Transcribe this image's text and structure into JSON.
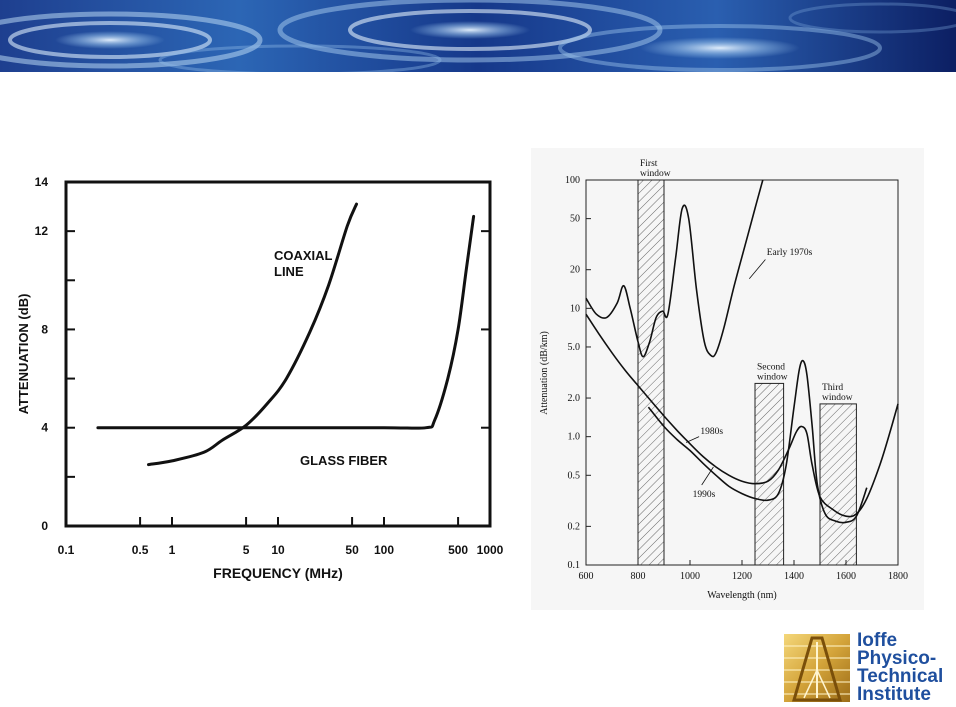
{
  "banner": {
    "colors": [
      "#0b1e5c",
      "#1d4fa3",
      "#7fb2e0",
      "#e8f2fb"
    ]
  },
  "chart_data": [
    {
      "type": "line",
      "title": "",
      "xlabel": "FREQUENCY (MHz)",
      "ylabel": "ATTENUATION (dB)",
      "xscale": "log",
      "xlim": [
        0.1,
        1000
      ],
      "ylim": [
        0,
        14
      ],
      "x_ticks": [
        "0.1",
        "0.5",
        "1",
        "5",
        "10",
        "50",
        "100",
        "500",
        "1000"
      ],
      "y_ticks": [
        "0",
        "4",
        "8",
        "12",
        "14"
      ],
      "series": [
        {
          "name": "COAXIAL LINE",
          "label_lines": [
            "COAXIAL",
            "LINE"
          ],
          "points": [
            [
              0.6,
              2.5
            ],
            [
              1,
              2.65
            ],
            [
              2,
              3.0
            ],
            [
              3,
              3.5
            ],
            [
              5,
              4.1
            ],
            [
              8,
              5.0
            ],
            [
              12,
              6.0
            ],
            [
              20,
              7.9
            ],
            [
              30,
              9.8
            ],
            [
              45,
              12.2
            ],
            [
              55,
              13.1
            ]
          ]
        },
        {
          "name": "GLASS FIBER",
          "label_lines": [
            "GLASS FIBER"
          ],
          "points": [
            [
              0.2,
              4.0
            ],
            [
              1,
              4.0
            ],
            [
              10,
              4.0
            ],
            [
              100,
              4.0
            ],
            [
              250,
              4.0
            ],
            [
              300,
              4.3
            ],
            [
              400,
              6.0
            ],
            [
              500,
              8.0
            ],
            [
              600,
              10.5
            ],
            [
              700,
              12.6
            ]
          ]
        }
      ]
    },
    {
      "type": "line",
      "title": "",
      "xlabel": "Wavelength (nm)",
      "ylabel": "Attenuation (dB/km)",
      "yscale": "log",
      "xlim": [
        600,
        1800
      ],
      "ylim": [
        0.1,
        100
      ],
      "x_ticks": [
        "600",
        "800",
        "1000",
        "1200",
        "1400",
        "1600",
        "1800"
      ],
      "y_ticks": [
        "0.1",
        "0.2",
        "0.5",
        "1.0",
        "2.0",
        "5.0",
        "10",
        "20",
        "50",
        "100"
      ],
      "windows": [
        {
          "name": "First window",
          "label_lines": [
            "First",
            "window"
          ],
          "x": [
            800,
            900
          ],
          "top": 100
        },
        {
          "name": "Second window",
          "label_lines": [
            "Second",
            "window"
          ],
          "x": [
            1250,
            1360
          ],
          "top": 2.6
        },
        {
          "name": "Third window",
          "label_lines": [
            "Third",
            "window"
          ],
          "x": [
            1500,
            1640
          ],
          "top": 1.8
        }
      ],
      "series": [
        {
          "name": "Early 1970s",
          "points": [
            [
              600,
              12
            ],
            [
              640,
              9
            ],
            [
              680,
              8.5
            ],
            [
              720,
              11
            ],
            [
              745,
              15
            ],
            [
              770,
              10
            ],
            [
              800,
              5.5
            ],
            [
              820,
              4.2
            ],
            [
              845,
              5.5
            ],
            [
              870,
              8.5
            ],
            [
              895,
              9.5
            ],
            [
              915,
              9
            ],
            [
              945,
              25
            ],
            [
              970,
              60
            ],
            [
              995,
              50
            ],
            [
              1025,
              14
            ],
            [
              1055,
              5.5
            ],
            [
              1080,
              4.3
            ],
            [
              1100,
              4.5
            ],
            [
              1130,
              7
            ],
            [
              1170,
              15
            ],
            [
              1210,
              30
            ],
            [
              1250,
              60
            ],
            [
              1280,
              100
            ]
          ]
        },
        {
          "name": "1980s",
          "points": [
            [
              600,
              9
            ],
            [
              650,
              6.3
            ],
            [
              700,
              4.5
            ],
            [
              750,
              3.3
            ],
            [
              800,
              2.5
            ],
            [
              850,
              1.9
            ],
            [
              900,
              1.45
            ],
            [
              950,
              1.12
            ],
            [
              1000,
              0.88
            ],
            [
              1050,
              0.7
            ],
            [
              1100,
              0.58
            ],
            [
              1150,
              0.5
            ],
            [
              1200,
              0.45
            ],
            [
              1250,
              0.43
            ],
            [
              1300,
              0.45
            ],
            [
              1340,
              0.55
            ],
            [
              1380,
              0.8
            ],
            [
              1410,
              1.1
            ],
            [
              1430,
              1.2
            ],
            [
              1450,
              1.05
            ],
            [
              1470,
              0.6
            ],
            [
              1500,
              0.34
            ],
            [
              1550,
              0.27
            ],
            [
              1600,
              0.24
            ],
            [
              1640,
              0.25
            ],
            [
              1680,
              0.33
            ],
            [
              1730,
              0.6
            ],
            [
              1770,
              1.1
            ],
            [
              1800,
              1.8
            ]
          ]
        },
        {
          "name": "1990s",
          "points": [
            [
              840,
              1.7
            ],
            [
              900,
              1.2
            ],
            [
              950,
              0.95
            ],
            [
              1000,
              0.78
            ],
            [
              1050,
              0.62
            ],
            [
              1100,
              0.5
            ],
            [
              1150,
              0.41
            ],
            [
              1200,
              0.36
            ],
            [
              1250,
              0.33
            ],
            [
              1300,
              0.32
            ],
            [
              1340,
              0.36
            ],
            [
              1370,
              0.6
            ],
            [
              1400,
              1.7
            ],
            [
              1420,
              3.3
            ],
            [
              1435,
              3.9
            ],
            [
              1450,
              3.0
            ],
            [
              1470,
              1.2
            ],
            [
              1490,
              0.42
            ],
            [
              1520,
              0.25
            ],
            [
              1560,
              0.22
            ],
            [
              1600,
              0.215
            ],
            [
              1640,
              0.24
            ],
            [
              1680,
              0.4
            ]
          ]
        }
      ]
    }
  ],
  "logo": {
    "lines": [
      "Ioffe",
      "Physico-",
      "Technical",
      "Institute"
    ]
  }
}
